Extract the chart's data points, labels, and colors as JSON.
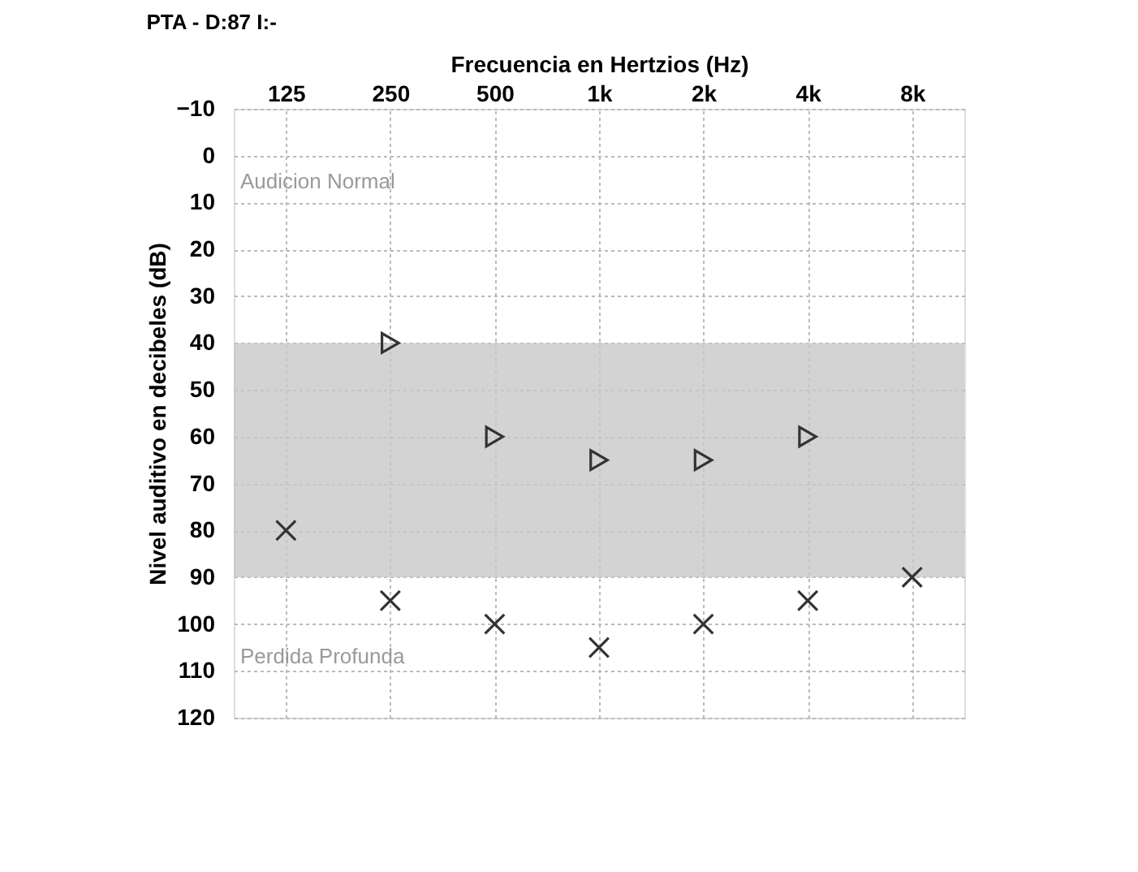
{
  "chart_data": {
    "type": "scatter",
    "title": "PTA - D:87 I:-",
    "xlabel": "Frecuencia en Hertzios (Hz)",
    "ylabel": "Nivel auditivo en decibeles (dB)",
    "categories": [
      "125",
      "250",
      "500",
      "1k",
      "2k",
      "4k",
      "8k"
    ],
    "series": [
      {
        "color": "#333333",
        "marker": "triangle",
        "values": [
          null,
          40,
          60,
          65,
          65,
          60,
          null
        ]
      },
      {
        "color": "#333333",
        "marker": "cross",
        "values": [
          80,
          95,
          100,
          105,
          100,
          95,
          90
        ]
      }
    ],
    "ylim": [
      120,
      -10
    ],
    "yticks": [
      -10,
      0,
      10,
      20,
      30,
      40,
      50,
      60,
      70,
      80,
      90,
      100,
      110,
      120
    ],
    "grid": true,
    "bands": [
      {
        "axis": "y",
        "from": 40,
        "to": 90,
        "color": "#c8c8c8"
      }
    ],
    "annotations": [
      "Audicion Normal",
      "Perdida Profunda"
    ]
  }
}
